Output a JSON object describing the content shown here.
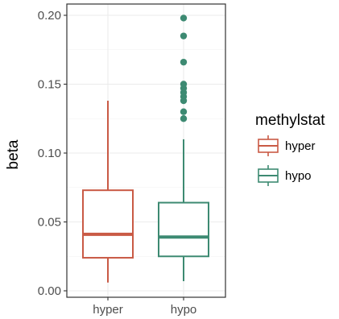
{
  "chart_data": {
    "type": "boxplot",
    "xlabel": "",
    "ylabel": "beta",
    "categories": [
      "hyper",
      "hypo"
    ],
    "ylim": [
      0,
      0.2
    ],
    "yticks": [
      "0.00",
      "0.05",
      "0.10",
      "0.15",
      "0.20"
    ],
    "grid": true,
    "legend": {
      "title": "methylstat",
      "position": "right",
      "entries": [
        "hyper",
        "hypo"
      ]
    },
    "colors": {
      "hyper": "#C95A45",
      "hypo": "#3D8A72"
    },
    "boxes": [
      {
        "name": "hyper",
        "lower_whisker": 0.006,
        "q1": 0.024,
        "median": 0.041,
        "q3": 0.073,
        "upper_whisker": 0.138,
        "outliers": []
      },
      {
        "name": "hypo",
        "lower_whisker": 0.007,
        "q1": 0.025,
        "median": 0.039,
        "q3": 0.064,
        "upper_whisker": 0.11,
        "outliers": [
          0.125,
          0.13,
          0.138,
          0.141,
          0.144,
          0.147,
          0.15,
          0.166,
          0.185,
          0.198
        ]
      }
    ]
  }
}
